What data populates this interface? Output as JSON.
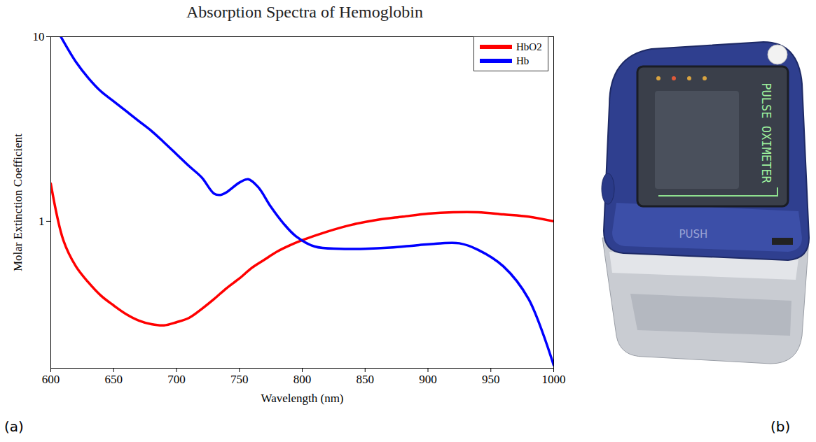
{
  "chart_data": {
    "type": "line",
    "title": "Absorption Spectra of Hemoglobin",
    "x_label": "Wavelength (nm)",
    "y_label": "Molar Extinction Coefficient",
    "log": "y",
    "legend": "top-right",
    "grid": false,
    "xlim": [
      600,
      1000
    ],
    "xticks": [
      600,
      650,
      700,
      750,
      800,
      850,
      900,
      950,
      1000
    ],
    "ylim": [
      0.16,
      10
    ],
    "yticks": [
      1,
      10
    ],
    "series": [
      {
        "name": "HbO2",
        "color": "#ff0000",
        "x": [
          600,
          610,
          620,
          630,
          640,
          650,
          660,
          670,
          680,
          690,
          700,
          710,
          720,
          730,
          740,
          750,
          760,
          770,
          780,
          790,
          800,
          820,
          840,
          860,
          880,
          900,
          920,
          940,
          960,
          980,
          1000
        ],
        "values": [
          1.6,
          0.79,
          0.57,
          0.466,
          0.395,
          0.35,
          0.314,
          0.29,
          0.277,
          0.273,
          0.284,
          0.3,
          0.335,
          0.38,
          0.435,
          0.49,
          0.56,
          0.62,
          0.685,
          0.74,
          0.79,
          0.88,
          0.96,
          1.02,
          1.06,
          1.1,
          1.12,
          1.12,
          1.09,
          1.06,
          1.0
        ]
      },
      {
        "name": "Hb",
        "color": "#0000ff",
        "x": [
          608,
          620,
          630,
          640,
          650,
          660,
          670,
          680,
          690,
          700,
          710,
          720,
          730,
          735,
          740,
          750,
          757,
          765,
          775,
          785,
          795,
          810,
          830,
          850,
          870,
          890,
          910,
          925,
          940,
          960,
          980,
          1000
        ],
        "values": [
          10,
          7.3,
          5.96,
          5.05,
          4.47,
          3.95,
          3.49,
          3.09,
          2.68,
          2.31,
          1.99,
          1.73,
          1.41,
          1.39,
          1.44,
          1.62,
          1.69,
          1.53,
          1.2,
          0.975,
          0.83,
          0.73,
          0.71,
          0.71,
          0.72,
          0.74,
          0.76,
          0.76,
          0.7,
          0.57,
          0.38,
          0.166
        ]
      }
    ]
  },
  "panel_labels": [
    "(a)",
    "(b)"
  ],
  "device": {
    "screen_text": "PULSE OXIMETER",
    "button_text": "PUSH"
  }
}
